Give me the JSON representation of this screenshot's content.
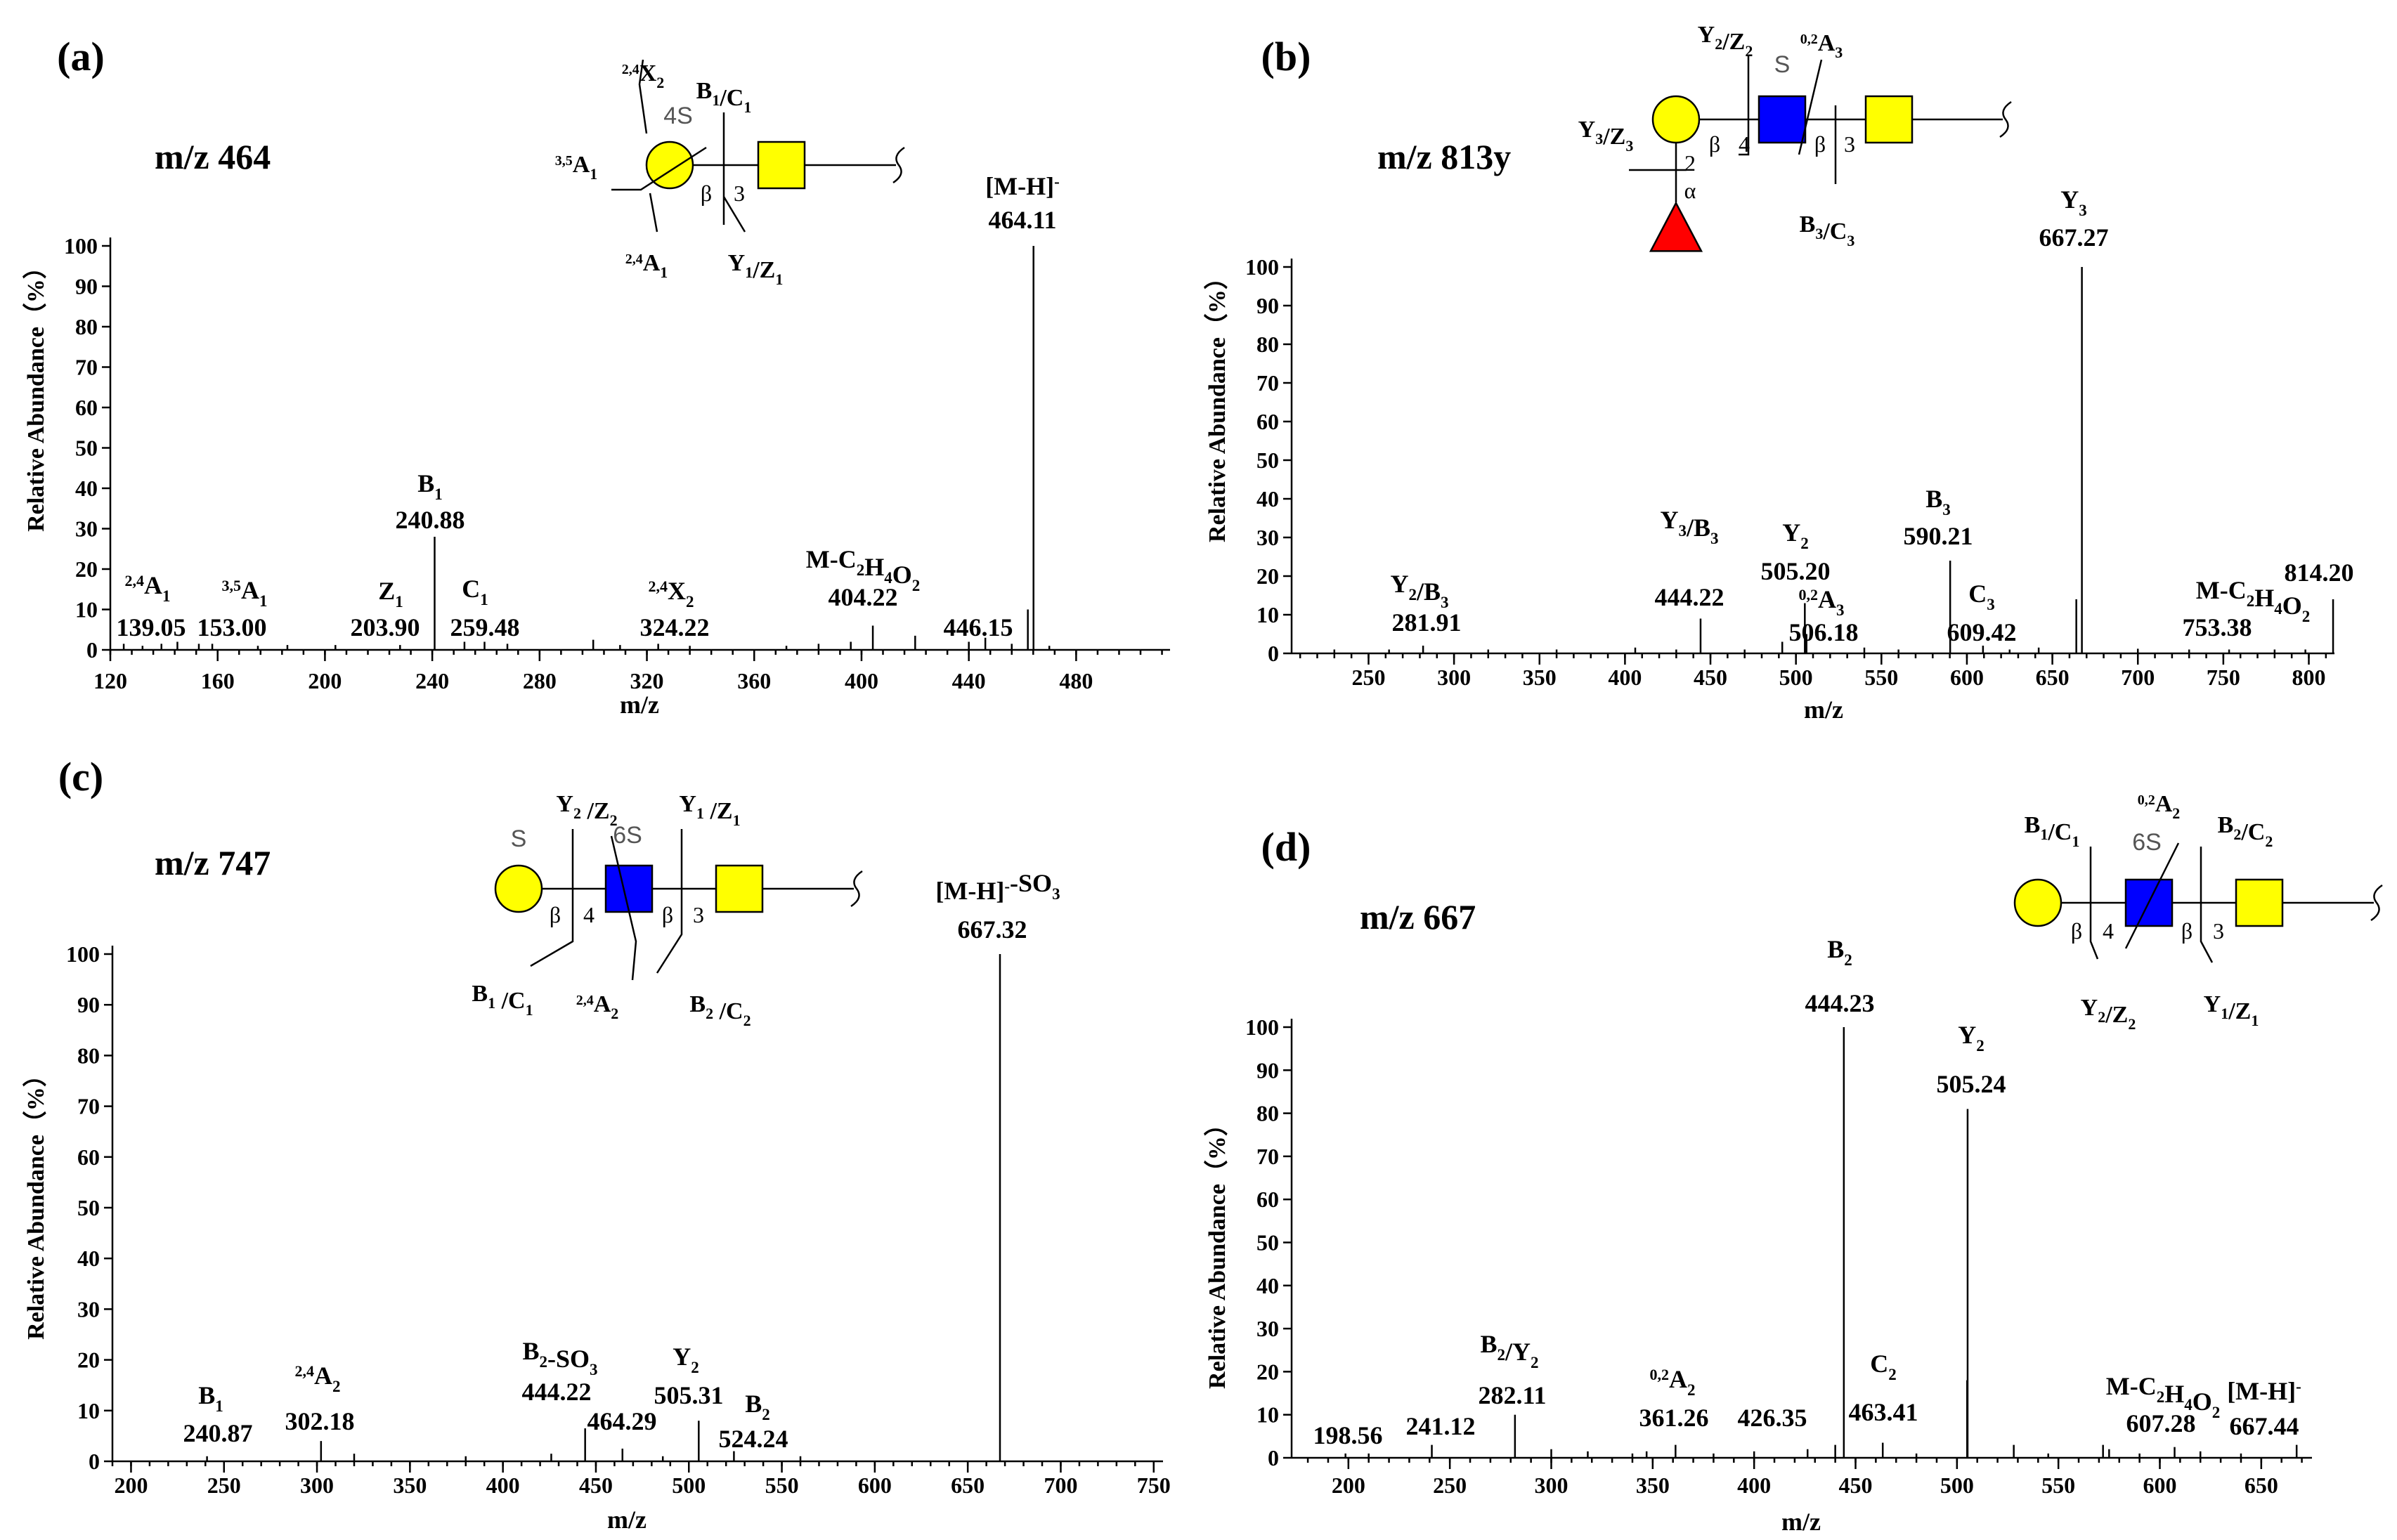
{
  "figure": {
    "panels": [
      {
        "id": "a",
        "panel_label": "(a)",
        "precursor": "m/z 464",
        "xlabel": "m/z",
        "ylabel": "Relative Abundance（%）",
        "glycan": {
          "residues": [
            {
              "shape": "circle",
              "color": "#ffff00",
              "mod": "4S"
            },
            {
              "shape": "square",
              "color": "#ffff00"
            }
          ],
          "linkages": [
            {
              "anomer": "β",
              "position": "3"
            }
          ],
          "fragments": [
            {
              "main": "X",
              "pre": "2,4",
              "sub": "2"
            },
            {
              "main": "B",
              "sub": "1",
              "rest": "/C",
              "sub2": "1"
            },
            {
              "main": "A",
              "pre": "3,5",
              "sub": "1"
            },
            {
              "main": "A",
              "pre": "2,4",
              "sub": "1"
            },
            {
              "main": "Y",
              "sub": "1",
              "rest": "/Z",
              "sub2": "1"
            }
          ]
        }
      },
      {
        "id": "b",
        "panel_label": "(b)",
        "precursor": "m/z 813y",
        "xlabel": "m/z",
        "ylabel": "Relative Abundance（%）",
        "glycan": {
          "residues": [
            {
              "shape": "circle",
              "color": "#ffff00"
            },
            {
              "shape": "square",
              "color": "#0000ff",
              "mod": "S"
            },
            {
              "shape": "square",
              "color": "#ffff00"
            },
            {
              "shape": "triangle",
              "color": "#ff0000"
            }
          ],
          "linkages": [
            {
              "anomer": "β",
              "position": "4"
            },
            {
              "anomer": "β",
              "position": "3"
            },
            {
              "anomer": "α",
              "position": "2"
            }
          ],
          "fragments": [
            {
              "main": "Y",
              "sub": "2",
              "rest": "/Z",
              "sub2": "2"
            },
            {
              "main": "A",
              "pre": "0,2",
              "sub": "3"
            },
            {
              "main": "Y",
              "sub": "3",
              "rest": "/Z",
              "sub2": "3"
            },
            {
              "main": "B",
              "sub": "3",
              "rest": "/C",
              "sub2": "3"
            }
          ]
        }
      },
      {
        "id": "c",
        "panel_label": "(c)",
        "precursor": "m/z 747",
        "xlabel": "m/z",
        "ylabel": "Relative Abundance（%）",
        "glycan": {
          "residues": [
            {
              "shape": "circle",
              "color": "#ffff00",
              "mod": "S"
            },
            {
              "shape": "square",
              "color": "#0000ff",
              "mod": "6S"
            },
            {
              "shape": "square",
              "color": "#ffff00"
            }
          ],
          "linkages": [
            {
              "anomer": "β",
              "position": "4"
            },
            {
              "anomer": "β",
              "position": "3"
            }
          ],
          "fragments": [
            {
              "main": "Y",
              "sub": "2",
              "rest": " /Z",
              "sub2": "2"
            },
            {
              "main": "Y",
              "sub": "1",
              "rest": " /Z",
              "sub2": "1"
            },
            {
              "main": "B",
              "sub": "1",
              "rest": " /C",
              "sub2": "1"
            },
            {
              "main": "A",
              "pre": "2,4",
              "sub": "2"
            },
            {
              "main": "B",
              "sub": "2",
              "rest": " /C",
              "sub2": "2"
            }
          ]
        }
      },
      {
        "id": "d",
        "panel_label": "(d)",
        "precursor": "m/z 667",
        "xlabel": "m/z",
        "ylabel": "Relative Abundance（%）",
        "glycan": {
          "residues": [
            {
              "shape": "circle",
              "color": "#ffff00"
            },
            {
              "shape": "square",
              "color": "#0000ff",
              "mod": "6S"
            },
            {
              "shape": "square",
              "color": "#ffff00"
            }
          ],
          "linkages": [
            {
              "anomer": "β",
              "position": "4"
            },
            {
              "anomer": "β",
              "position": "3"
            }
          ],
          "fragments": [
            {
              "main": "B",
              "sub": "1",
              "rest": "/C",
              "sub2": "1"
            },
            {
              "main": "A",
              "pre": "0,2",
              "sub": "2"
            },
            {
              "main": "B",
              "sub": "2",
              "rest": "/C",
              "sub2": "2"
            },
            {
              "main": "Y",
              "sub": "2",
              "rest": "/Z",
              "sub2": "2"
            },
            {
              "main": "Y",
              "sub": "1",
              "rest": "/Z",
              "sub2": "1"
            }
          ]
        }
      }
    ]
  },
  "chart_data": [
    {
      "type": "bar",
      "panel": "a",
      "title": "m/z 464",
      "xlabel": "m/z",
      "ylabel": "Relative Abundance（%）",
      "xlim": [
        120,
        515
      ],
      "ylim": [
        0,
        100
      ],
      "xticks": [
        120,
        160,
        200,
        240,
        280,
        320,
        360,
        400,
        440,
        480
      ],
      "yticks": [
        0,
        10,
        20,
        30,
        40,
        50,
        60,
        70,
        80,
        90,
        100
      ],
      "peaks": [
        {
          "mz": 139.05,
          "intensity": 1.5,
          "value_text": "139.05",
          "ion": {
            "main": "A",
            "pre": "2,4",
            "sub": "1"
          }
        },
        {
          "mz": 153.0,
          "intensity": 1.5,
          "value_text": "153.00",
          "ion": {
            "main": "A",
            "pre": "3,5",
            "sub": "1"
          }
        },
        {
          "mz": 203.9,
          "intensity": 1.2,
          "value_text": "203.90",
          "ion": {
            "main": "Z",
            "sub": "1"
          }
        },
        {
          "mz": 240.88,
          "intensity": 28,
          "value_text": "240.88",
          "ion": {
            "main": "B",
            "sub": "1"
          }
        },
        {
          "mz": 259.48,
          "intensity": 2,
          "value_text": "259.48",
          "ion": {
            "main": "C",
            "sub": "1"
          }
        },
        {
          "mz": 324.22,
          "intensity": 1.5,
          "value_text": "324.22",
          "ion": {
            "main": "X",
            "pre": "2,4",
            "sub": "2"
          }
        },
        {
          "mz": 404.22,
          "intensity": 6,
          "value_text": "404.22",
          "ion": {
            "main": "M-C",
            "sub": "2",
            "rest": "H",
            "sub2": "4",
            "rest2": "O",
            "sub3": "2"
          }
        },
        {
          "mz": 446.15,
          "intensity": 3,
          "value_text": "446.15"
        },
        {
          "mz": 464.11,
          "intensity": 100,
          "value_text": "464.11",
          "ion": {
            "main": "[M-H]",
            "sup": "-"
          }
        }
      ],
      "minor_peaks": [
        [
          125,
          1.5
        ],
        [
          132,
          1
        ],
        [
          145,
          2
        ],
        [
          158,
          1.5
        ],
        [
          175,
          1
        ],
        [
          186,
          1.2
        ],
        [
          228,
          1.2
        ],
        [
          252,
          2
        ],
        [
          268,
          1.5
        ],
        [
          300,
          2.5
        ],
        [
          310,
          1.2
        ],
        [
          336,
          1
        ],
        [
          372,
          1
        ],
        [
          384,
          1.5
        ],
        [
          396,
          2
        ],
        [
          420,
          3.5
        ],
        [
          440,
          2
        ],
        [
          456,
          1.5
        ],
        [
          462,
          10
        ],
        [
          470,
          1
        ]
      ]
    },
    {
      "type": "bar",
      "panel": "b",
      "title": "m/z 813y",
      "xlabel": "m/z",
      "ylabel": "Relative Abundance（%）",
      "xlim": [
        205,
        815
      ],
      "ylim": [
        0,
        100
      ],
      "xticks": [
        250,
        300,
        350,
        400,
        450,
        500,
        550,
        600,
        650,
        700,
        750,
        800
      ],
      "yticks": [
        0,
        10,
        20,
        30,
        40,
        50,
        60,
        70,
        80,
        90,
        100
      ],
      "peaks": [
        {
          "mz": 281.91,
          "intensity": 2,
          "value_text": "281.91",
          "ion": {
            "main": "Y",
            "sub": "2",
            "rest": "/B",
            "sub2": "3"
          }
        },
        {
          "mz": 444.22,
          "intensity": 9,
          "value_text": "444.22",
          "ion": {
            "main": "Y",
            "sub": "3",
            "rest": "/B",
            "sub2": "3"
          }
        },
        {
          "mz": 505.2,
          "intensity": 13,
          "value_text": "505.20",
          "ion": {
            "main": "Y",
            "sub": "2"
          }
        },
        {
          "mz": 506.18,
          "intensity": 5,
          "value_text": "506.18",
          "ion": {
            "main": "A",
            "pre": "0,2",
            "sub": "3"
          }
        },
        {
          "mz": 590.21,
          "intensity": 24,
          "value_text": "590.21",
          "ion": {
            "main": "B",
            "sub": "3"
          }
        },
        {
          "mz": 609.42,
          "intensity": 2,
          "value_text": "609.42",
          "ion": {
            "main": "C",
            "sub": "3"
          }
        },
        {
          "mz": 667.27,
          "intensity": 100,
          "value_text": "667.27",
          "ion": {
            "main": "Y",
            "sub": "3"
          }
        },
        {
          "mz": 753.38,
          "intensity": 1,
          "value_text": "753.38",
          "ion": {
            "main": "M-C",
            "sub": "2",
            "rest": "H",
            "sub2": "4",
            "rest2": "O",
            "sub3": "2"
          }
        },
        {
          "mz": 814.2,
          "intensity": 14,
          "value_text": "814.20"
        }
      ],
      "minor_peaks": [
        [
          230,
          1
        ],
        [
          262,
          1
        ],
        [
          320,
          1
        ],
        [
          360,
          1
        ],
        [
          406,
          1.5
        ],
        [
          430,
          1
        ],
        [
          470,
          1
        ],
        [
          492,
          3
        ],
        [
          540,
          1.5
        ],
        [
          560,
          1
        ],
        [
          625,
          1
        ],
        [
          642,
          1.5
        ],
        [
          664,
          14
        ],
        [
          700,
          1.2
        ],
        [
          730,
          1
        ],
        [
          780,
          1
        ],
        [
          798,
          1
        ]
      ]
    },
    {
      "type": "bar",
      "panel": "c",
      "title": "m/z 747",
      "xlabel": "m/z",
      "ylabel": "Relative Abundance（%）",
      "xlim": [
        190,
        755
      ],
      "ylim": [
        0,
        100
      ],
      "xticks": [
        200,
        250,
        300,
        350,
        400,
        450,
        500,
        550,
        600,
        650,
        700,
        750
      ],
      "yticks": [
        0,
        10,
        20,
        30,
        40,
        50,
        60,
        70,
        80,
        90,
        100
      ],
      "peaks": [
        {
          "mz": 240.87,
          "intensity": 1,
          "value_text": "240.87",
          "ion": {
            "main": "B",
            "sub": "1"
          }
        },
        {
          "mz": 302.18,
          "intensity": 4,
          "value_text": "302.18",
          "ion": {
            "main": "A",
            "pre": "2,4",
            "sub": "2"
          }
        },
        {
          "mz": 444.22,
          "intensity": 6.5,
          "value_text": "444.22",
          "ion": {
            "main": "B",
            "sub": "2",
            "rest": "-SO",
            "sub2": "3"
          }
        },
        {
          "mz": 464.29,
          "intensity": 2.5,
          "value_text": "464.29"
        },
        {
          "mz": 505.31,
          "intensity": 8,
          "value_text": "505.31",
          "ion": {
            "main": "Y",
            "sub": "2"
          }
        },
        {
          "mz": 524.24,
          "intensity": 2,
          "value_text": "524.24",
          "ion": {
            "main": "B",
            "sub": "2"
          }
        },
        {
          "mz": 667.32,
          "intensity": 100,
          "value_text": "667.32",
          "ion": {
            "main": "[M-H]",
            "sup": "-",
            "rest": "-SO",
            "sub2": "3"
          }
        }
      ],
      "minor_peaks": [
        [
          320,
          1.5
        ],
        [
          380,
          1
        ],
        [
          426,
          1.5
        ],
        [
          486,
          1
        ],
        [
          560,
          1
        ]
      ]
    },
    {
      "type": "bar",
      "panel": "d",
      "title": "m/z 667",
      "xlabel": "m/z",
      "ylabel": "Relative Abundance（%）",
      "xlim": [
        172,
        675
      ],
      "ylim": [
        0,
        100
      ],
      "xticks": [
        200,
        250,
        300,
        350,
        400,
        450,
        500,
        550,
        600,
        650
      ],
      "yticks": [
        0,
        10,
        20,
        30,
        40,
        50,
        60,
        70,
        80,
        90,
        100
      ],
      "peaks": [
        {
          "mz": 198.56,
          "intensity": 1,
          "value_text": "198.56"
        },
        {
          "mz": 241.12,
          "intensity": 3,
          "value_text": "241.12"
        },
        {
          "mz": 282.11,
          "intensity": 10,
          "value_text": "282.11",
          "ion": {
            "main": "B",
            "sub": "2",
            "rest": "/Y",
            "sub2": "2"
          }
        },
        {
          "mz": 361.26,
          "intensity": 3,
          "value_text": "361.26",
          "ion": {
            "main": "A",
            "pre": "0,2",
            "sub": "2"
          }
        },
        {
          "mz": 426.35,
          "intensity": 2,
          "value_text": "426.35"
        },
        {
          "mz": 444.23,
          "intensity": 100,
          "value_text": "444.23",
          "ion": {
            "main": "B",
            "sub": "2"
          }
        },
        {
          "mz": 463.41,
          "intensity": 3.5,
          "value_text": "463.41",
          "ion": {
            "main": "C",
            "sub": "2"
          }
        },
        {
          "mz": 505.24,
          "intensity": 81,
          "value_text": "505.24",
          "ion": {
            "main": "Y",
            "sub": "2"
          }
        },
        {
          "mz": 607.28,
          "intensity": 2.5,
          "value_text": "607.28",
          "ion": {
            "main": "M-C",
            "sub": "2",
            "rest": "H",
            "sub2": "4",
            "rest2": "O",
            "sub3": "2"
          }
        },
        {
          "mz": 667.44,
          "intensity": 3,
          "value_text": "667.44",
          "ion": {
            "main": "[M-H]",
            "sup": "-"
          }
        }
      ],
      "minor_peaks": [
        [
          210,
          1
        ],
        [
          300,
          2
        ],
        [
          318,
          1.5
        ],
        [
          340,
          1
        ],
        [
          347,
          1.5
        ],
        [
          380,
          1
        ],
        [
          400,
          1.5
        ],
        [
          440,
          3
        ],
        [
          480,
          1
        ],
        [
          505,
          18
        ],
        [
          528,
          3
        ],
        [
          545,
          1
        ],
        [
          572,
          3
        ],
        [
          575,
          2
        ],
        [
          590,
          1
        ],
        [
          620,
          1.5
        ],
        [
          640,
          1
        ]
      ]
    }
  ]
}
